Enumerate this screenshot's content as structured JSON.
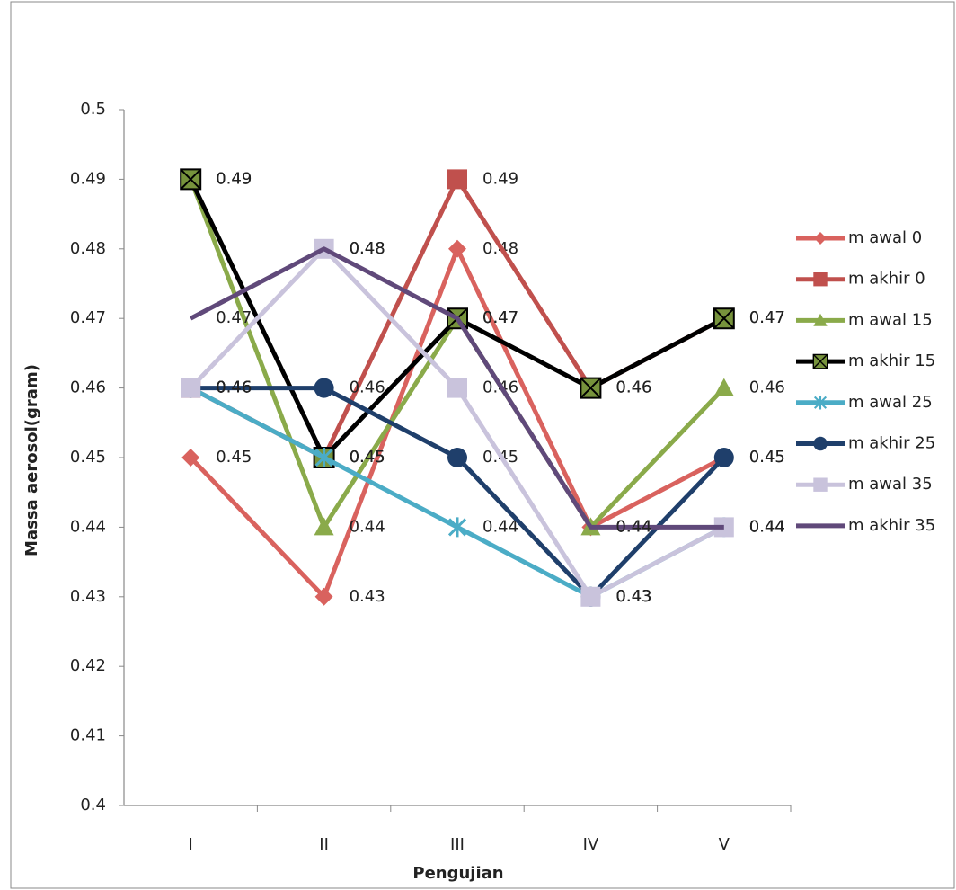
{
  "chart_data": {
    "type": "line",
    "x_label": "Pengujian",
    "y_label": "Massa aerosol(gram)",
    "categories": [
      "I",
      "II",
      "III",
      "IV",
      "V"
    ],
    "ylim": [
      0.4,
      0.5
    ],
    "yticks": [
      0.4,
      0.41,
      0.42,
      0.43,
      0.44,
      0.45,
      0.46,
      0.47,
      0.48,
      0.49,
      0.5
    ],
    "grid": false,
    "legend": "right",
    "series": [
      {
        "name": "m awal 0",
        "color": "#d9625e",
        "marker": "diamond",
        "values": [
          0.45,
          0.43,
          0.48,
          0.44,
          0.45
        ]
      },
      {
        "name": "m akhir 0",
        "color": "#c0504d",
        "marker": "square",
        "values": [
          0.46,
          0.45,
          0.49,
          0.46,
          0.47
        ]
      },
      {
        "name": "m awal 15",
        "color": "#8aaa4a",
        "marker": "triangle",
        "values": [
          0.49,
          0.44,
          0.47,
          0.44,
          0.46
        ]
      },
      {
        "name": "m akhir 15",
        "color": "#000000",
        "marker": "square-x",
        "values": [
          0.49,
          0.45,
          0.47,
          0.46,
          0.47
        ]
      },
      {
        "name": "m awal 25",
        "color": "#4bacc6",
        "marker": "asterisk",
        "values": [
          0.46,
          0.45,
          0.44,
          0.43,
          0.44
        ]
      },
      {
        "name": "m akhir 25",
        "color": "#1f3f6b",
        "marker": "circle",
        "values": [
          0.46,
          0.46,
          0.45,
          0.43,
          0.45
        ]
      },
      {
        "name": "m awal 35",
        "color": "#c9c3dc",
        "marker": "square",
        "values": [
          0.46,
          0.48,
          0.46,
          0.43,
          0.44
        ]
      },
      {
        "name": "m akhir 35",
        "color": "#60497a",
        "marker": "none",
        "values": [
          0.47,
          0.48,
          0.47,
          0.44,
          0.44
        ]
      }
    ]
  }
}
